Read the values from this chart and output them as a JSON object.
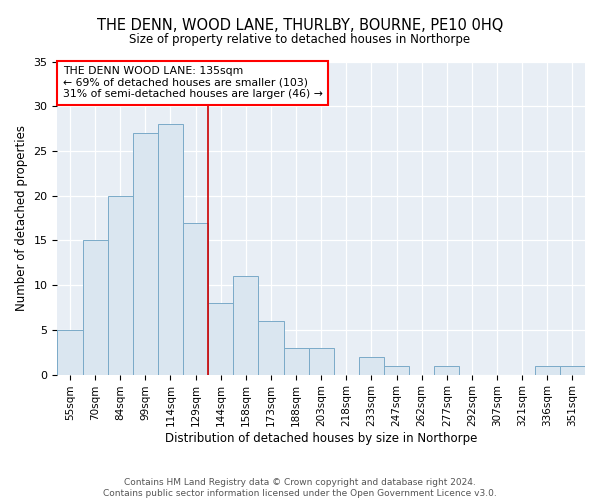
{
  "title": "THE DENN, WOOD LANE, THURLBY, BOURNE, PE10 0HQ",
  "subtitle": "Size of property relative to detached houses in Northorpe",
  "xlabel": "Distribution of detached houses by size in Northorpe",
  "ylabel": "Number of detached properties",
  "categories": [
    "55sqm",
    "70sqm",
    "84sqm",
    "99sqm",
    "114sqm",
    "129sqm",
    "144sqm",
    "158sqm",
    "173sqm",
    "188sqm",
    "203sqm",
    "218sqm",
    "233sqm",
    "247sqm",
    "262sqm",
    "277sqm",
    "292sqm",
    "307sqm",
    "321sqm",
    "336sqm",
    "351sqm"
  ],
  "values": [
    5,
    15,
    20,
    27,
    28,
    17,
    8,
    11,
    6,
    3,
    3,
    0,
    2,
    1,
    0,
    1,
    0,
    0,
    0,
    1,
    1
  ],
  "bar_color": "#dae6f0",
  "bar_edge_color": "#7aaac8",
  "background_color": "#e8eef5",
  "grid_color": "#ffffff",
  "ylim": [
    0,
    35
  ],
  "red_line_x": 5.5,
  "annotation_text": "THE DENN WOOD LANE: 135sqm\n← 69% of detached houses are smaller (103)\n31% of semi-detached houses are larger (46) →",
  "annotation_box_facecolor": "white",
  "annotation_box_edgecolor": "red",
  "footer": "Contains HM Land Registry data © Crown copyright and database right 2024.\nContains public sector information licensed under the Open Government Licence v3.0."
}
